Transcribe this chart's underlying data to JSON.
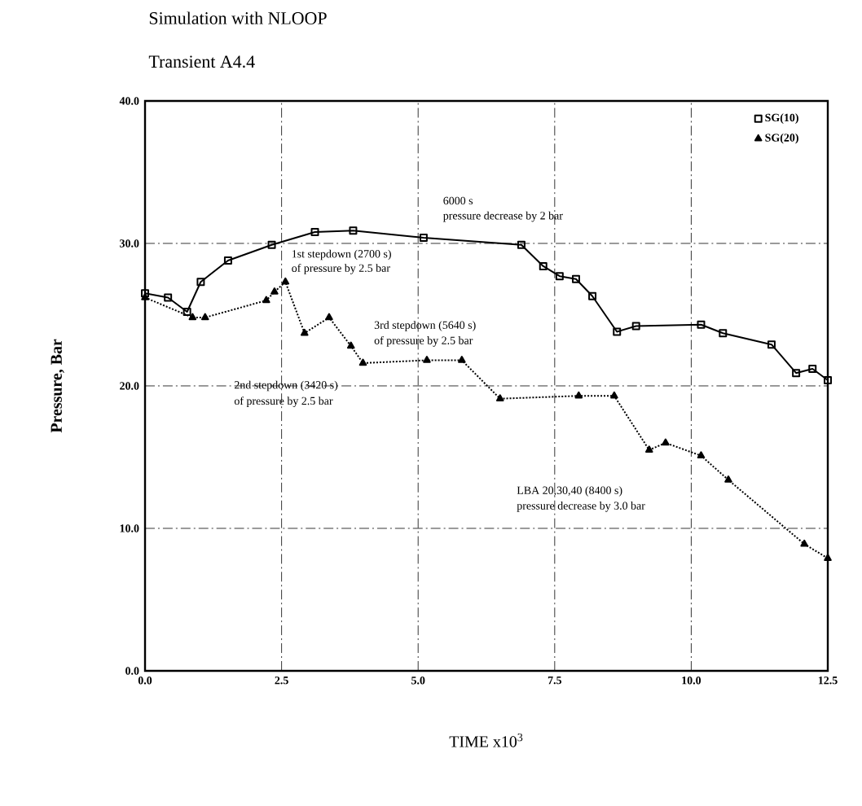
{
  "chart_data": {
    "type": "line",
    "title": "Simulation with NLOOP",
    "subtitle": "Transient A4.4",
    "xlabel": "TIME    x10$^{3}$",
    "ylabel": "Pressure, Bar",
    "xlim": [
      0,
      12.5
    ],
    "ylim": [
      0,
      40
    ],
    "xticks": [
      {
        "value": 0,
        "label": "0.0"
      },
      {
        "value": 2.5,
        "label": "2.5"
      },
      {
        "value": 5,
        "label": "5.0"
      },
      {
        "value": 7.5,
        "label": "7.5"
      },
      {
        "value": 10,
        "label": "10.0"
      },
      {
        "value": 12.5,
        "label": "12.5"
      }
    ],
    "yticks": [
      {
        "value": 0,
        "label": "0.0"
      },
      {
        "value": 10,
        "label": "10.0"
      },
      {
        "value": 20,
        "label": "20.0"
      },
      {
        "value": 30,
        "label": "30.0"
      },
      {
        "value": 40,
        "label": "40.0"
      }
    ],
    "grid": true,
    "legend": "top right",
    "series": [
      {
        "name": "SG(10)",
        "color": "#000000",
        "marker": "square",
        "line_style": "solid",
        "x": [
          0,
          0.42,
          0.77,
          1.02,
          1.52,
          2.32,
          3.11,
          3.81,
          5.1,
          6.89,
          7.29,
          7.59,
          7.89,
          8.19,
          8.64,
          8.99,
          10.18,
          10.58,
          11.47,
          11.92,
          12.22,
          12.5
        ],
        "values": [
          26.5,
          26.2,
          25.2,
          27.3,
          28.8,
          29.9,
          30.8,
          30.9,
          30.4,
          29.9,
          28.4,
          27.7,
          27.5,
          26.3,
          23.8,
          24.2,
          24.3,
          23.7,
          22.9,
          20.9,
          21.2,
          20.4
        ]
      },
      {
        "name": "SG(20)",
        "color": "#000000",
        "marker": "triangle",
        "line_style": "dotted",
        "x": [
          0,
          0.87,
          1.1,
          2.22,
          2.37,
          2.57,
          2.92,
          3.37,
          3.77,
          3.99,
          5.16,
          5.8,
          6.5,
          7.94,
          8.59,
          9.23,
          9.53,
          10.18,
          10.68,
          12.07,
          12.5
        ],
        "values": [
          26.2,
          24.8,
          24.8,
          26.0,
          26.6,
          27.3,
          23.7,
          24.8,
          22.8,
          21.6,
          21.8,
          21.8,
          19.1,
          19.3,
          19.3,
          15.5,
          16.0,
          15.1,
          13.4,
          8.9,
          7.9
        ]
      }
    ],
    "annotations": [
      "6000 s",
      "pressure decrease by 2 bar",
      "1st stepdown (2700 s)",
      "of pressure by 2.5 bar",
      "3rd stepdown (5640 s)",
      "of pressure by 2.5 bar",
      "2nd stepdown (3420 s)",
      "of pressure by 2.5 bar",
      "LBA 20,30,40 (8400 s)",
      "pressure decrease by 3.0 bar"
    ]
  }
}
